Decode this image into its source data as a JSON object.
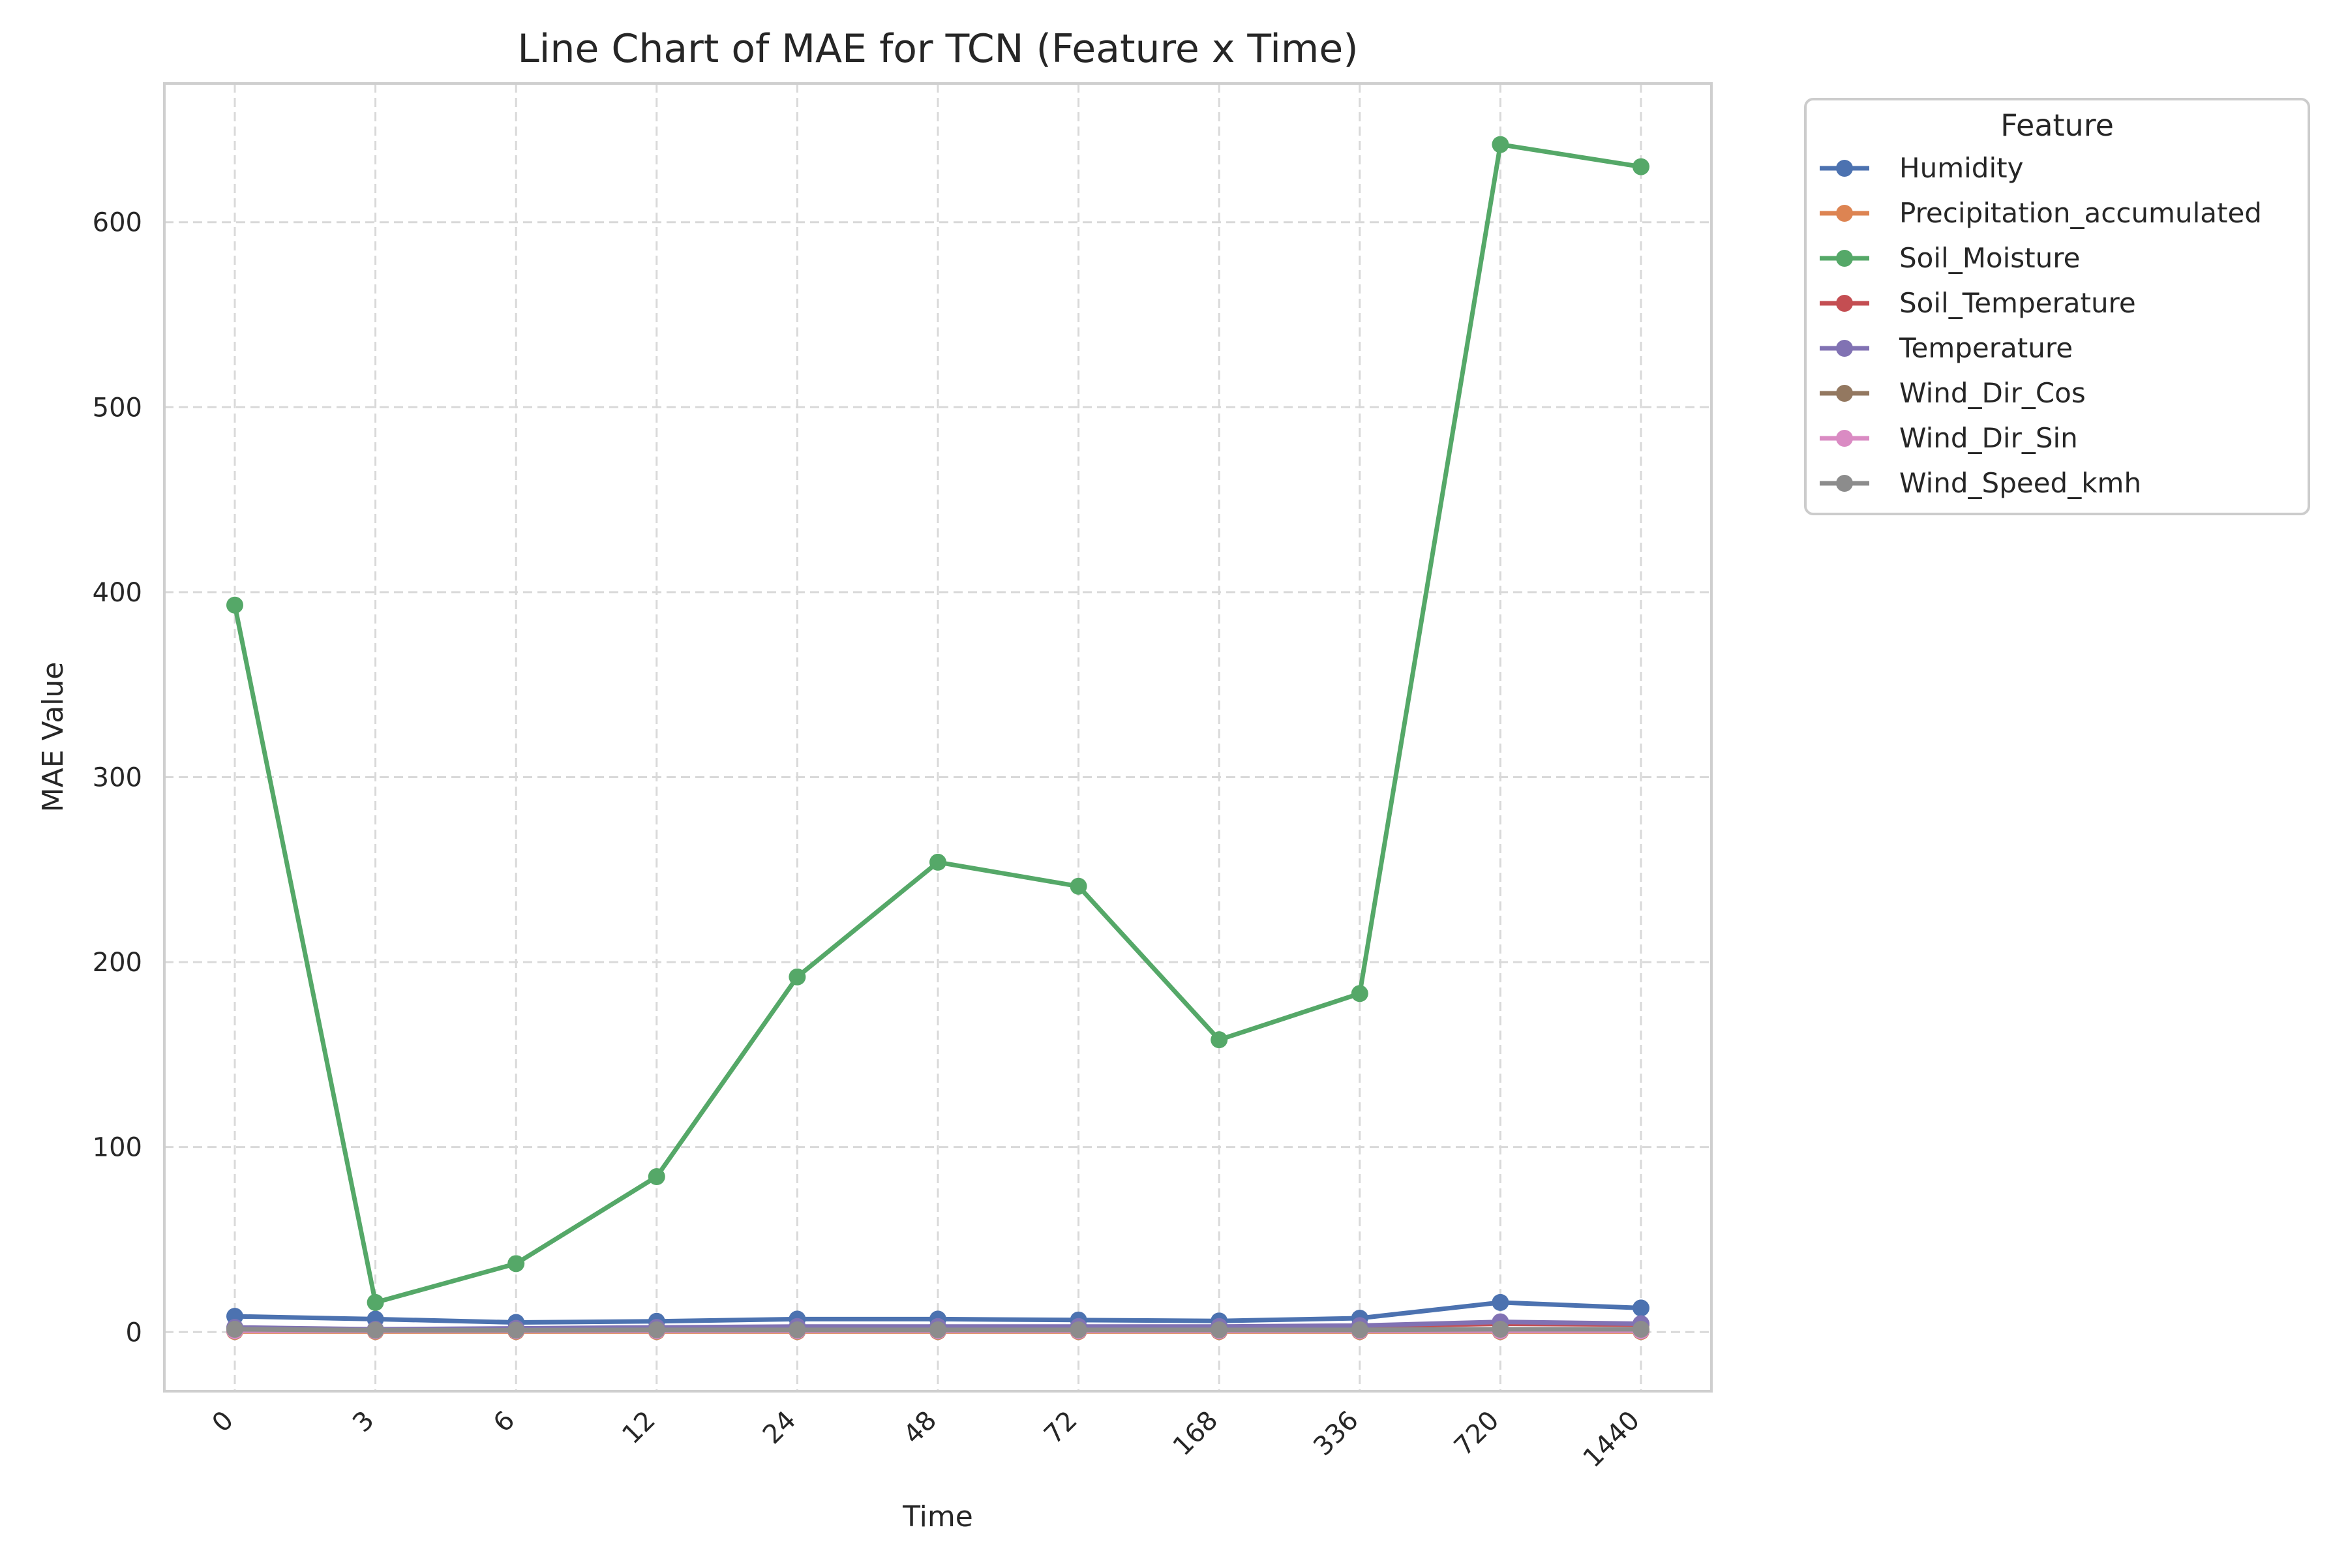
{
  "chart_data": {
    "type": "line",
    "title": "Line Chart of MAE for TCN (Feature x Time)",
    "xlabel": "Time",
    "ylabel": "MAE Value",
    "categories": [
      "0",
      "3",
      "6",
      "12",
      "24",
      "48",
      "72",
      "168",
      "336",
      "720",
      "1440"
    ],
    "ylim": [
      -32,
      675
    ],
    "yticks": [
      0,
      100,
      200,
      300,
      400,
      500,
      600
    ],
    "grid": true,
    "legend": {
      "title": "Feature",
      "placement": "outside-top-right"
    },
    "series": [
      {
        "name": "Humidity",
        "color": "#4c72b0",
        "values": [
          8.5,
          7.0,
          5.2,
          5.8,
          7.0,
          7.0,
          6.5,
          6.0,
          7.5,
          16.0,
          13.0
        ]
      },
      {
        "name": "Precipitation_accumulated",
        "color": "#dd8452",
        "values": [
          0.3,
          0.3,
          0.3,
          0.3,
          0.3,
          0.3,
          0.3,
          0.3,
          0.3,
          0.3,
          0.3
        ]
      },
      {
        "name": "Soil_Moisture",
        "color": "#55a868",
        "values": [
          393,
          16,
          37,
          84,
          192,
          254,
          241,
          158,
          183,
          642,
          630
        ]
      },
      {
        "name": "Soil_Temperature",
        "color": "#c44e52",
        "values": [
          2.0,
          1.0,
          1.5,
          2.0,
          2.5,
          2.5,
          2.5,
          2.5,
          3.0,
          4.5,
          4.0
        ]
      },
      {
        "name": "Temperature",
        "color": "#8172b3",
        "values": [
          2.5,
          1.5,
          2.0,
          2.5,
          3.0,
          3.0,
          3.0,
          3.0,
          3.5,
          5.5,
          4.5
        ]
      },
      {
        "name": "Wind_Dir_Cos",
        "color": "#937860",
        "values": [
          0.6,
          0.6,
          0.6,
          0.6,
          0.6,
          0.6,
          0.6,
          0.6,
          0.6,
          0.6,
          0.6
        ]
      },
      {
        "name": "Wind_Dir_Sin",
        "color": "#da8bc3",
        "values": [
          0.7,
          0.7,
          0.7,
          0.7,
          0.7,
          0.7,
          0.7,
          0.7,
          0.7,
          0.7,
          0.7
        ]
      },
      {
        "name": "Wind_Speed_kmh",
        "color": "#8c8c8c",
        "values": [
          1.5,
          1.0,
          1.0,
          1.2,
          1.2,
          1.2,
          1.2,
          1.2,
          1.2,
          1.5,
          1.5
        ]
      }
    ]
  }
}
